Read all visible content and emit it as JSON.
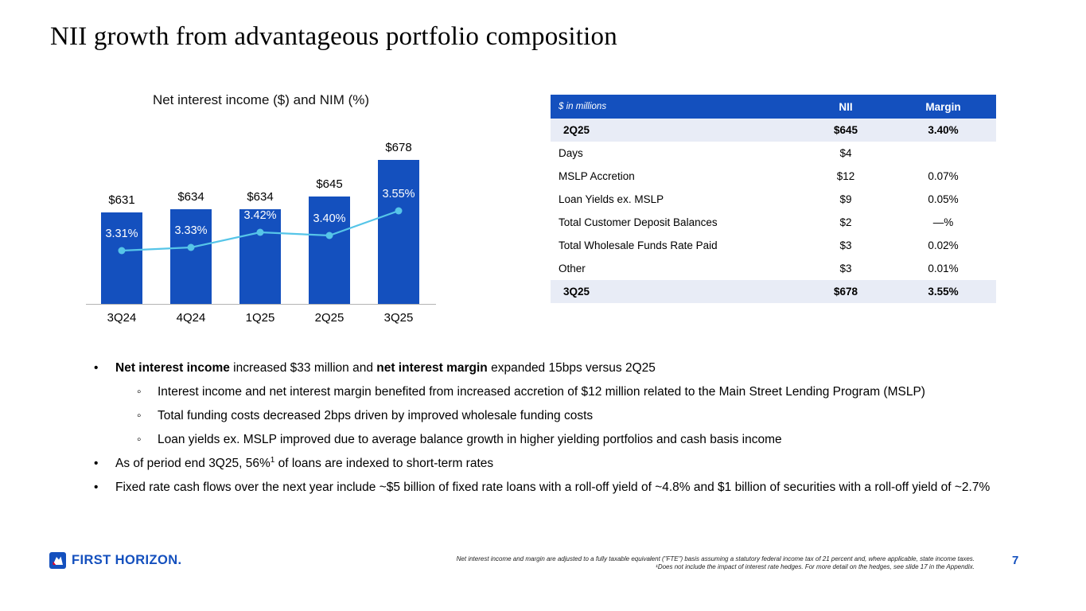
{
  "colors": {
    "bar_blue": "#1450be",
    "line_blue": "#56c5e8",
    "highlight_row": "#e8ecf6",
    "brand_blue": "#1450be",
    "brand_red": "#e4002b"
  },
  "slide": {
    "title": "NII growth from advantageous portfolio composition"
  },
  "chart_data": {
    "type": "bar+line",
    "title": "Net interest income ($) and NIM (%)",
    "categories": [
      "3Q24",
      "4Q24",
      "1Q25",
      "2Q25",
      "3Q25"
    ],
    "series": [
      {
        "name": "Net interest income ($ in millions)",
        "type": "bar",
        "values": [
          631,
          634,
          634,
          645,
          678
        ],
        "labels": [
          "$631",
          "$634",
          "$634",
          "$645",
          "$678"
        ]
      },
      {
        "name": "NIM (%)",
        "type": "line",
        "values": [
          3.31,
          3.33,
          3.42,
          3.4,
          3.55
        ],
        "labels": [
          "3.31%",
          "3.33%",
          "3.42%",
          "3.40%",
          "3.55%"
        ]
      }
    ],
    "legend_position": "none",
    "grid": false
  },
  "table": {
    "header": [
      "$ in millions",
      "NII",
      "Margin"
    ],
    "rows": [
      {
        "label": "2Q25",
        "nii": "$645",
        "margin": "3.40%",
        "highlight": true
      },
      {
        "label": "Days",
        "nii": "$4",
        "margin": ""
      },
      {
        "label": "MSLP Accretion",
        "nii": "$12",
        "margin": "0.07%"
      },
      {
        "label": "Loan Yields ex. MSLP",
        "nii": "$9",
        "margin": "0.05%"
      },
      {
        "label": "Total Customer Deposit Balances",
        "nii": "$2",
        "margin": "—%"
      },
      {
        "label": "Total Wholesale Funds Rate Paid",
        "nii": "$3",
        "margin": "0.02%"
      },
      {
        "label": "Other",
        "nii": "$3",
        "margin": "0.01%"
      },
      {
        "label": "3Q25",
        "nii": "$678",
        "margin": "3.55%",
        "highlight": true
      }
    ]
  },
  "bullets": [
    {
      "level": 1,
      "segments": [
        {
          "text": "Net interest income",
          "bold": true
        },
        {
          "text": " increased $33 million and "
        },
        {
          "text": "net interest margin",
          "bold": true
        },
        {
          "text": " expanded 15bps versus 2Q25"
        }
      ]
    },
    {
      "level": 2,
      "segments": [
        {
          "text": "Interest income and net interest margin benefited from increased accretion of $12 million related to the Main Street Lending Program (MSLP)"
        }
      ]
    },
    {
      "level": 2,
      "segments": [
        {
          "text": "Total funding costs decreased 2bps driven by improved wholesale funding costs"
        }
      ]
    },
    {
      "level": 2,
      "segments": [
        {
          "text": "Loan yields ex. MSLP improved due to average balance growth in higher yielding portfolios and cash basis income"
        }
      ]
    },
    {
      "level": 1,
      "segments": [
        {
          "text": "As of period end 3Q25, 56%"
        },
        {
          "text": "1",
          "sup": true
        },
        {
          "text": " of loans are indexed to short-term rates"
        }
      ]
    },
    {
      "level": 1,
      "segments": [
        {
          "text": "Fixed rate cash flows over the next year include ~$5 billion of fixed rate loans with a roll-off yield of ~4.8% and $1 billion of securities with a roll-off yield of ~2.7%"
        }
      ]
    }
  ],
  "footer": {
    "logo_text": "FIRST HORIZON.",
    "footnote_line1": "Net interest income and margin are adjusted to a fully taxable equivalent (\"FTE\") basis assuming a statutory federal income tax of 21 percent and, where applicable, state income taxes.",
    "footnote_line2": "¹Does not include the impact of interest rate hedges. For more detail on the hedges, see slide 17 in the Appendix.",
    "page_number": "7"
  }
}
